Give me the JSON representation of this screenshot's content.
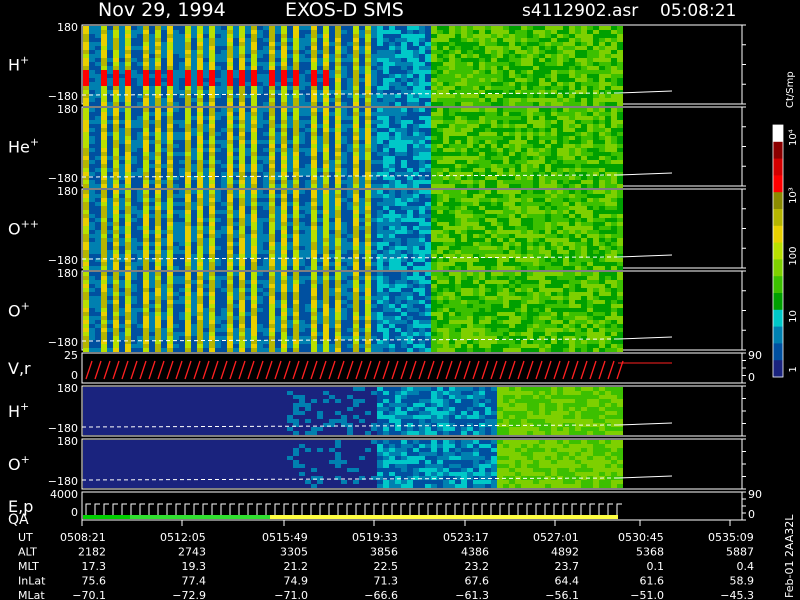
{
  "header": {
    "date": "Nov 29, 1994",
    "instrument": "EXOS-D SMS",
    "file": "s4112902.asr",
    "time": "05:08:21"
  },
  "colorbar": {
    "unit": "Ct/Smp",
    "tick_labels": [
      "10⁴",
      "10³",
      "100",
      "10",
      "1"
    ],
    "colors": [
      "#ffffff",
      "#8b0000",
      "#d40000",
      "#ff0000",
      "#8b8b00",
      "#b5b500",
      "#e8d000",
      "#b8e000",
      "#7ed000",
      "#3cc000",
      "#00a000",
      "#00c8c8",
      "#0080b0",
      "#0050a0",
      "#1a237e"
    ]
  },
  "panels": [
    {
      "id": "h-plus-pitch",
      "label": "H",
      "superscript": "+",
      "ytop": "180",
      "ybot": "−180"
    },
    {
      "id": "he-plus-pitch",
      "label": "He",
      "superscript": "+",
      "ytop": "180",
      "ybot": "−180"
    },
    {
      "id": "o-plusplus-pitch",
      "label": "O",
      "superscript": "++",
      "ytop": "180",
      "ybot": "−180"
    },
    {
      "id": "o-plus-pitch",
      "label": "O",
      "superscript": "+",
      "ytop": "180",
      "ybot": "−180"
    },
    {
      "id": "velocity",
      "label": "V,r",
      "superscript": "",
      "ytop": "25",
      "ybot": "0",
      "right_top": "90",
      "right_bot": "0"
    },
    {
      "id": "h-plus-2",
      "label": "H",
      "superscript": "+",
      "ytop": "180",
      "ybot": "−180"
    },
    {
      "id": "o-plus-2",
      "label": "O",
      "superscript": "+",
      "ytop": "180",
      "ybot": "−180"
    },
    {
      "id": "energy-qa",
      "label": "E,p",
      "label2": "QA",
      "superscript": "",
      "ytop": "4000",
      "ybot": "0",
      "right_top": "90",
      "right_bot": "0"
    }
  ],
  "chart_data": {
    "type": "heatmap",
    "title": "Nov 29, 1994   EXOS-D SMS",
    "x_axis_label": "UT",
    "x": [
      "0508:21",
      "0512:05",
      "0515:49",
      "0519:33",
      "0523:17",
      "0527:01",
      "0530:45",
      "0535:09"
    ],
    "rows": [
      {
        "name": "ALT",
        "values": [
          "2182",
          "2743",
          "3305",
          "3856",
          "4386",
          "4892",
          "5368",
          "5887"
        ]
      },
      {
        "name": "MLT",
        "values": [
          "17.3",
          "19.3",
          "21.2",
          "22.5",
          "23.2",
          "23.7",
          "0.1",
          "0.4"
        ]
      },
      {
        "name": "InLat",
        "values": [
          "75.6",
          "77.4",
          "74.9",
          "71.3",
          "67.6",
          "64.4",
          "61.6",
          "58.9"
        ]
      },
      {
        "name": "MLat",
        "values": [
          "−70.1",
          "−72.9",
          "−71.0",
          "−66.6",
          "−61.3",
          "−56.1",
          "−51.0",
          "−45.3"
        ]
      }
    ]
  },
  "side_label": "Feb-01 2AA32L"
}
